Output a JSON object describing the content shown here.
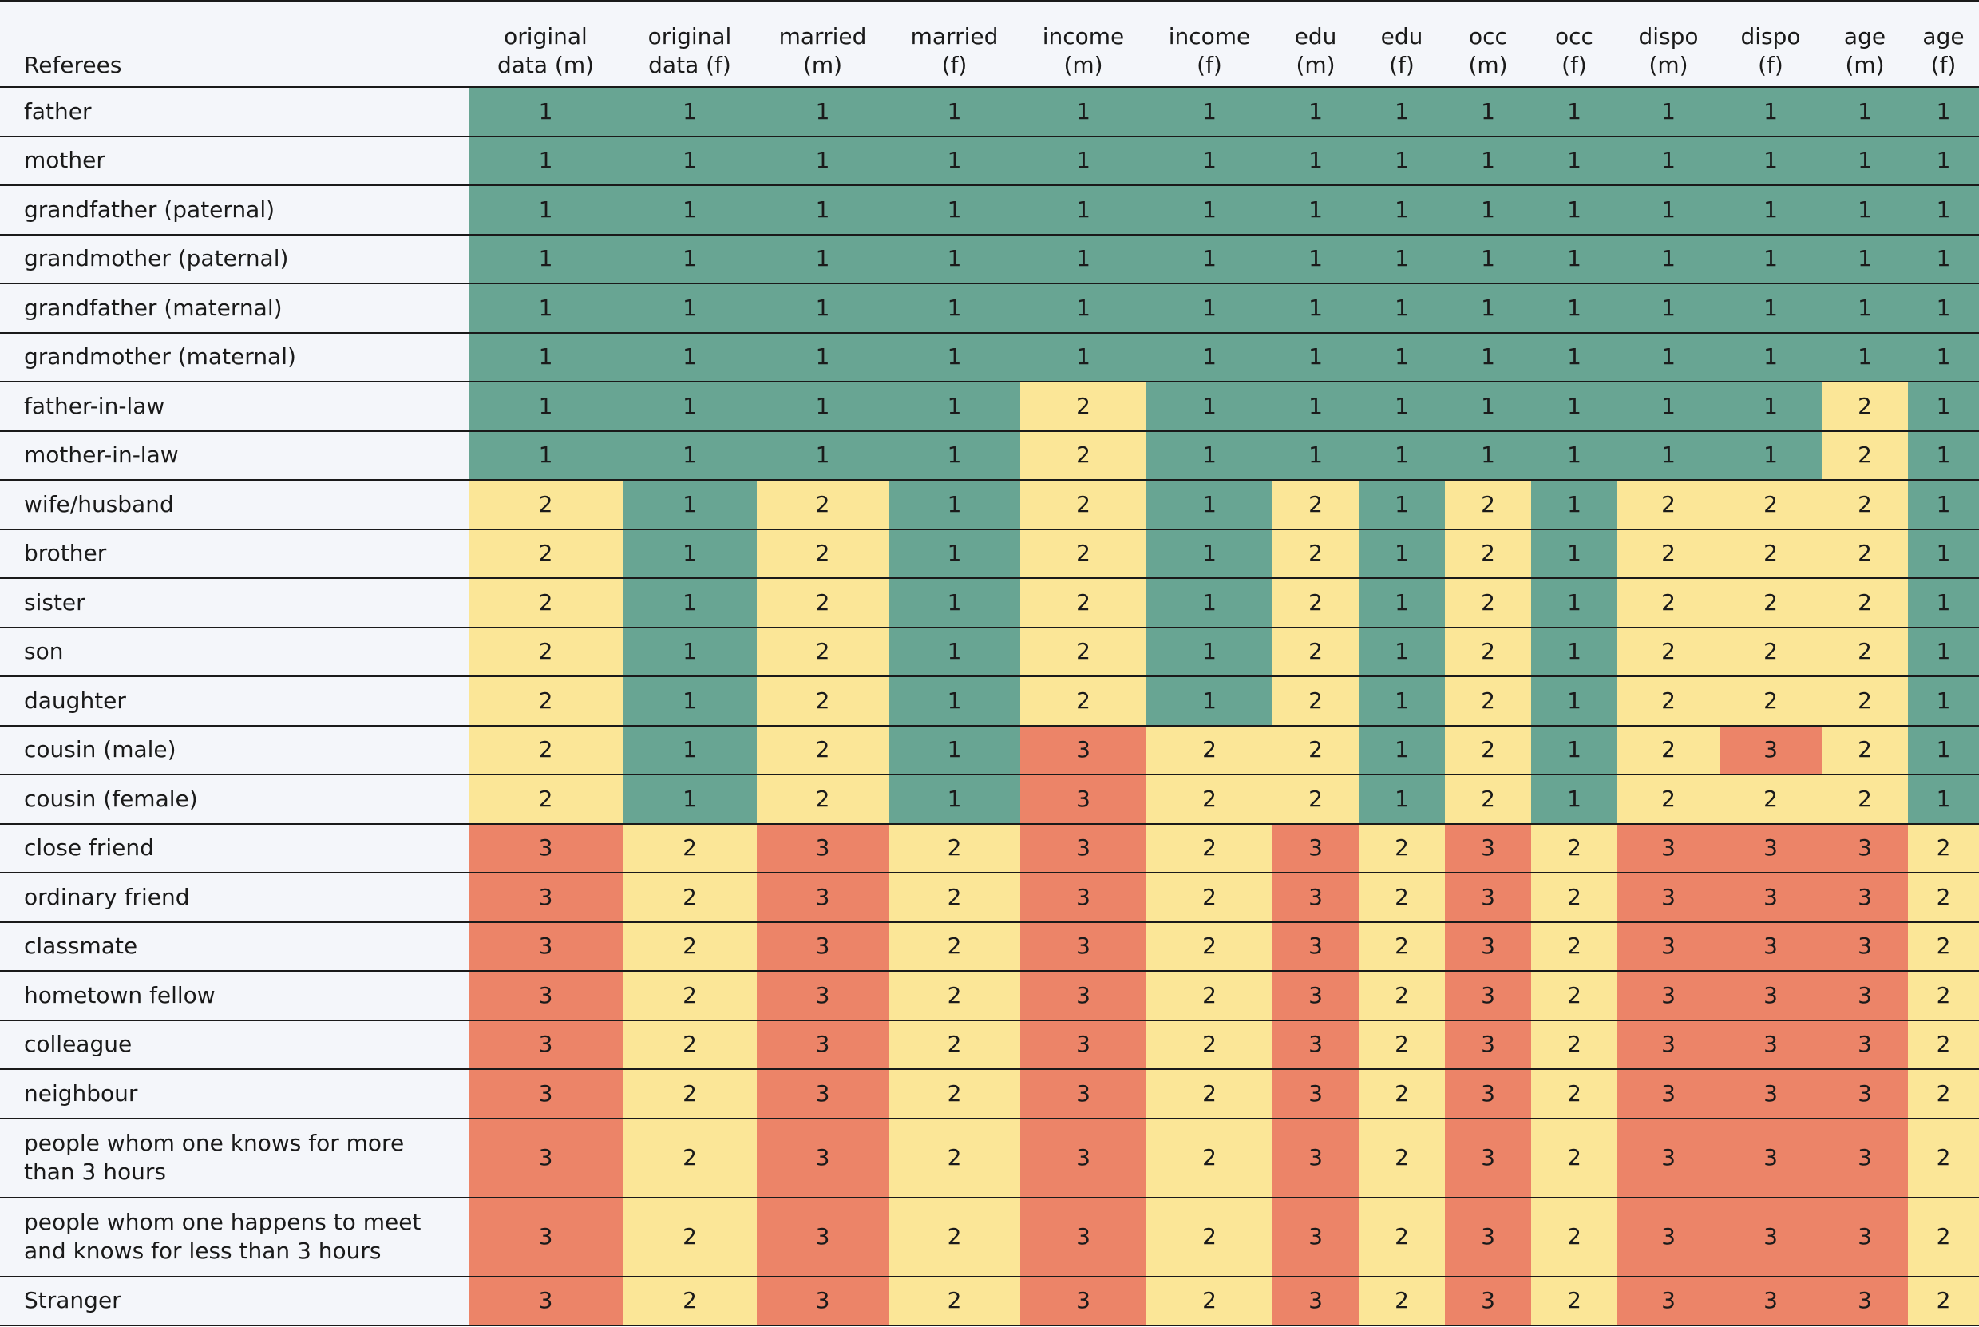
{
  "table": {
    "headers": [
      "Referees",
      "original\ndata (m)",
      "original\ndata (f)",
      "married\n(m)",
      "married\n(f)",
      "income\n(m)",
      "income\n(f)",
      "edu\n(m)",
      "edu\n(f)",
      "occ\n(m)",
      "occ\n(f)",
      "dispo\n(m)",
      "dispo\n(f)",
      "age\n(m)",
      "age\n(f)"
    ],
    "colors": {
      "1": "#68a593",
      "2": "#fbe697",
      "3": "#ec8468"
    },
    "rows": [
      {
        "referee": "father",
        "values": [
          1,
          1,
          1,
          1,
          1,
          1,
          1,
          1,
          1,
          1,
          1,
          1,
          1,
          1
        ]
      },
      {
        "referee": "mother",
        "values": [
          1,
          1,
          1,
          1,
          1,
          1,
          1,
          1,
          1,
          1,
          1,
          1,
          1,
          1
        ]
      },
      {
        "referee": "grandfather (paternal)",
        "values": [
          1,
          1,
          1,
          1,
          1,
          1,
          1,
          1,
          1,
          1,
          1,
          1,
          1,
          1
        ]
      },
      {
        "referee": "grandmother (paternal)",
        "values": [
          1,
          1,
          1,
          1,
          1,
          1,
          1,
          1,
          1,
          1,
          1,
          1,
          1,
          1
        ]
      },
      {
        "referee": "grandfather (maternal)",
        "values": [
          1,
          1,
          1,
          1,
          1,
          1,
          1,
          1,
          1,
          1,
          1,
          1,
          1,
          1
        ]
      },
      {
        "referee": "grandmother (maternal)",
        "values": [
          1,
          1,
          1,
          1,
          1,
          1,
          1,
          1,
          1,
          1,
          1,
          1,
          1,
          1
        ]
      },
      {
        "referee": "father-in-law",
        "values": [
          1,
          1,
          1,
          1,
          2,
          1,
          1,
          1,
          1,
          1,
          1,
          1,
          2,
          1
        ]
      },
      {
        "referee": "mother-in-law",
        "values": [
          1,
          1,
          1,
          1,
          2,
          1,
          1,
          1,
          1,
          1,
          1,
          1,
          2,
          1
        ]
      },
      {
        "referee": "wife/husband",
        "values": [
          2,
          1,
          2,
          1,
          2,
          1,
          2,
          1,
          2,
          1,
          2,
          2,
          2,
          1
        ]
      },
      {
        "referee": "brother",
        "values": [
          2,
          1,
          2,
          1,
          2,
          1,
          2,
          1,
          2,
          1,
          2,
          2,
          2,
          1
        ]
      },
      {
        "referee": "sister",
        "values": [
          2,
          1,
          2,
          1,
          2,
          1,
          2,
          1,
          2,
          1,
          2,
          2,
          2,
          1
        ]
      },
      {
        "referee": "son",
        "values": [
          2,
          1,
          2,
          1,
          2,
          1,
          2,
          1,
          2,
          1,
          2,
          2,
          2,
          1
        ]
      },
      {
        "referee": "daughter",
        "values": [
          2,
          1,
          2,
          1,
          2,
          1,
          2,
          1,
          2,
          1,
          2,
          2,
          2,
          1
        ]
      },
      {
        "referee": "cousin (male)",
        "values": [
          2,
          1,
          2,
          1,
          3,
          2,
          2,
          1,
          2,
          1,
          2,
          3,
          2,
          1
        ]
      },
      {
        "referee": "cousin (female)",
        "values": [
          2,
          1,
          2,
          1,
          3,
          2,
          2,
          1,
          2,
          1,
          2,
          2,
          2,
          1
        ]
      },
      {
        "referee": "close friend",
        "values": [
          3,
          2,
          3,
          2,
          3,
          2,
          3,
          2,
          3,
          2,
          3,
          3,
          3,
          2
        ]
      },
      {
        "referee": "ordinary friend",
        "values": [
          3,
          2,
          3,
          2,
          3,
          2,
          3,
          2,
          3,
          2,
          3,
          3,
          3,
          2
        ]
      },
      {
        "referee": "classmate",
        "values": [
          3,
          2,
          3,
          2,
          3,
          2,
          3,
          2,
          3,
          2,
          3,
          3,
          3,
          2
        ]
      },
      {
        "referee": "hometown fellow",
        "values": [
          3,
          2,
          3,
          2,
          3,
          2,
          3,
          2,
          3,
          2,
          3,
          3,
          3,
          2
        ]
      },
      {
        "referee": "colleague",
        "values": [
          3,
          2,
          3,
          2,
          3,
          2,
          3,
          2,
          3,
          2,
          3,
          3,
          3,
          2
        ]
      },
      {
        "referee": "neighbour",
        "values": [
          3,
          2,
          3,
          2,
          3,
          2,
          3,
          2,
          3,
          2,
          3,
          3,
          3,
          2
        ]
      },
      {
        "referee": "people whom one knows for more than 3 hours",
        "values": [
          3,
          2,
          3,
          2,
          3,
          2,
          3,
          2,
          3,
          2,
          3,
          3,
          3,
          2
        ]
      },
      {
        "referee": "people whom one happens to meet and knows for less than 3 hours",
        "values": [
          3,
          2,
          3,
          2,
          3,
          2,
          3,
          2,
          3,
          2,
          3,
          3,
          3,
          2
        ]
      },
      {
        "referee": "Stranger",
        "values": [
          3,
          2,
          3,
          2,
          3,
          2,
          3,
          2,
          3,
          2,
          3,
          3,
          3,
          2
        ]
      }
    ]
  }
}
